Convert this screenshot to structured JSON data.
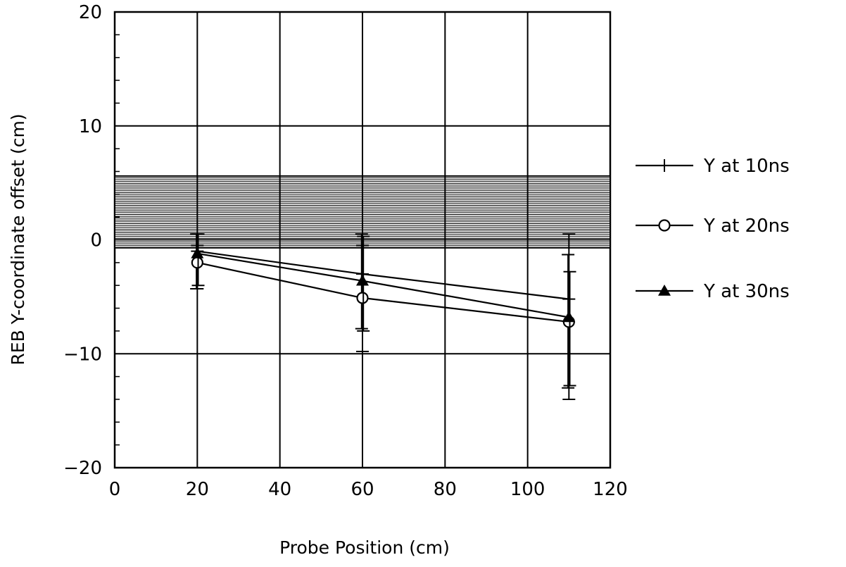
{
  "chart_data": {
    "type": "line",
    "title": "",
    "xlabel": "Probe Position (cm)",
    "ylabel": "REB Y-coordinate offset (cm)",
    "xlim": [
      0,
      120
    ],
    "ylim": [
      -20,
      20
    ],
    "xticks": [
      0,
      20,
      40,
      60,
      80,
      100,
      120
    ],
    "yticks": [
      20,
      10,
      0,
      -10,
      -20
    ],
    "grid": true,
    "legend_position": "right",
    "shaded_band": {
      "y_from": -0.7,
      "y_to": 5.6,
      "style": "horizontal-hatch"
    },
    "series": [
      {
        "name": "Y at 10ns",
        "marker": "plus",
        "x": [
          20,
          60,
          110
        ],
        "y": [
          -1.0,
          -3.0,
          -5.2
        ],
        "error_low": [
          -4.3,
          -7.8,
          -13.0
        ],
        "error_high": [
          0.5,
          0.5,
          -1.3
        ]
      },
      {
        "name": "Y at 20ns",
        "marker": "open-circle",
        "x": [
          20,
          60,
          110
        ],
        "y": [
          -2.0,
          -5.1,
          -7.2
        ],
        "error_low": [
          -4.3,
          -9.8,
          -14.0
        ],
        "error_high": [
          -0.5,
          -0.5,
          0.5
        ]
      },
      {
        "name": "Y at 30ns",
        "marker": "filled-triangle",
        "x": [
          20,
          60,
          110
        ],
        "y": [
          -1.2,
          -3.6,
          -6.8
        ],
        "error_low": [
          -4.0,
          -8.0,
          -12.8
        ],
        "error_high": [
          0.5,
          0.3,
          -2.8
        ]
      }
    ]
  },
  "colors": {
    "ink": "#000000",
    "background": "#ffffff"
  }
}
